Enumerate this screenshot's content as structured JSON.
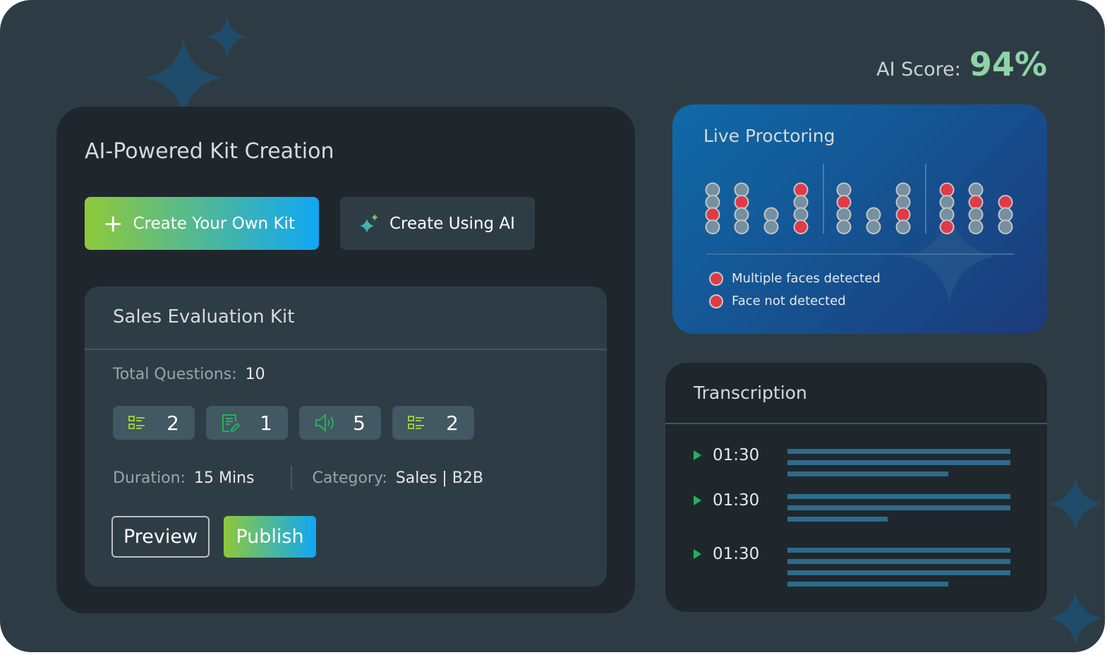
{
  "ai_score": {
    "label": "AI Score:",
    "value": "94%"
  },
  "kit_creation": {
    "title": "AI-Powered Kit Creation",
    "create_own_label": "Create Your Own Kit",
    "create_ai_label": "Create Using AI",
    "kit": {
      "title": "Sales Evaluation Kit",
      "total_questions_label": "Total Questions:",
      "total_questions": "10",
      "question_types": [
        {
          "icon": "checklist-icon",
          "count": "2"
        },
        {
          "icon": "document-edit-icon",
          "count": "1"
        },
        {
          "icon": "speaker-icon",
          "count": "5"
        },
        {
          "icon": "checklist-icon",
          "count": "2"
        }
      ],
      "duration_label": "Duration:",
      "duration": "15 Mins",
      "category_label": "Category:",
      "category": "Sales | B2B",
      "preview_label": "Preview",
      "publish_label": "Publish"
    }
  },
  "proctoring": {
    "title": "Live Proctoring",
    "columns": [
      [
        "g",
        "g",
        "r",
        "g"
      ],
      [
        "g",
        "r",
        "g",
        "g"
      ],
      [
        "g",
        "g"
      ],
      [
        "r",
        "g",
        "g",
        "r"
      ],
      [
        "g",
        "r",
        "g",
        "g"
      ],
      [
        "g",
        "g"
      ],
      [
        "g",
        "g",
        "r",
        "g"
      ],
      [
        "r",
        "g",
        "g",
        "r"
      ],
      [
        "g",
        "r",
        "g",
        "g"
      ],
      [
        "r",
        "g",
        "g"
      ]
    ],
    "legend": [
      "Multiple faces detected",
      "Face not detected"
    ],
    "colors": {
      "flag": "#e03a47",
      "ok": "#7590a0"
    }
  },
  "transcription": {
    "title": "Transcription",
    "entries": [
      {
        "time": "01:30",
        "lines": [
          1,
          1,
          0.72
        ]
      },
      {
        "time": "01:30",
        "lines": [
          1,
          1,
          0.45
        ]
      },
      {
        "time": "01:30",
        "lines": [
          1,
          1,
          1,
          0.72
        ]
      }
    ]
  },
  "colors": {
    "accent_green": "#8fc93a",
    "accent_blue": "#10a7f5",
    "score": "#8fd3a7"
  }
}
